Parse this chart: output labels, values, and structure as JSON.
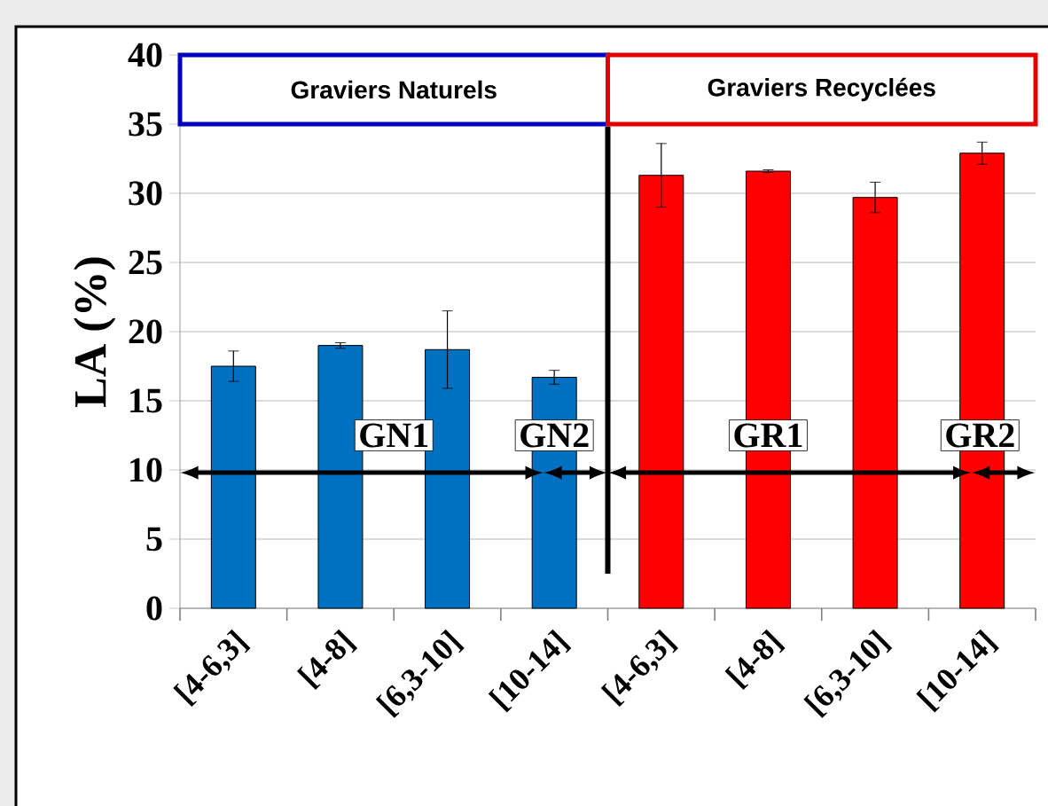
{
  "chart_data": {
    "type": "bar",
    "ylabel": "LA (%)",
    "categories": [
      "[4-6,3]",
      "[4-8]",
      "[6,3-10]",
      "[10-14]",
      "[4-6,3]",
      "[4-8]",
      "[6,3-10]",
      "[10-14]"
    ],
    "values": [
      17.5,
      19.0,
      18.7,
      16.7,
      31.3,
      31.6,
      29.7,
      32.9
    ],
    "errors": [
      1.1,
      0.2,
      2.8,
      0.5,
      2.3,
      0.1,
      1.1,
      0.8
    ],
    "colors": [
      "#0070c0",
      "#0070c0",
      "#0070c0",
      "#0070c0",
      "#ff0000",
      "#ff0000",
      "#ff0000",
      "#ff0000"
    ],
    "ylim": [
      0,
      40
    ],
    "yticks": [
      0,
      5,
      10,
      15,
      20,
      25,
      30,
      35,
      40
    ],
    "grid": "y",
    "annotations": [
      "Graviers Naturels",
      "Graviers Recyclées",
      "GN1",
      "GN2",
      "GR1",
      "GR2"
    ]
  }
}
